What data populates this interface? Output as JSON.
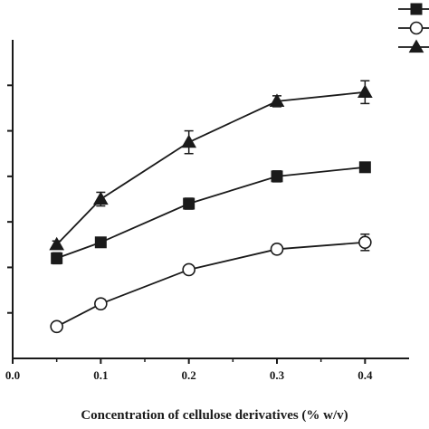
{
  "chart_data": {
    "type": "line",
    "xlabel": "Concentration of cellulose derivatives (% w/v)",
    "ylabel": "",
    "x": [
      0.05,
      0.1,
      0.2,
      0.3,
      0.4
    ],
    "xlim": [
      0.0,
      0.45
    ],
    "xticks": [
      "0.0",
      "0.1",
      "0.2",
      "0.3",
      "0.4"
    ],
    "ylim": [
      0,
      7
    ],
    "yticks": [
      1,
      2,
      3,
      4,
      5,
      6
    ],
    "grid": false,
    "legend": "top-right",
    "series": [
      {
        "marker": "filled-square",
        "color": "#1a1a1a",
        "values": [
          2.2,
          2.55,
          3.4,
          4.0,
          4.2
        ],
        "errors": [
          0.12,
          0.06,
          0.12,
          0.12,
          0.05
        ]
      },
      {
        "marker": "open-circle",
        "color": "#1a1a1a",
        "values": [
          0.7,
          1.2,
          1.95,
          2.4,
          2.55
        ],
        "errors": [
          0.08,
          0.1,
          0.06,
          0.1,
          0.18
        ]
      },
      {
        "marker": "filled-triangle",
        "color": "#1a1a1a",
        "values": [
          2.5,
          3.5,
          4.75,
          5.65,
          5.85
        ],
        "errors": [
          0.08,
          0.15,
          0.25,
          0.12,
          0.25
        ]
      }
    ]
  }
}
